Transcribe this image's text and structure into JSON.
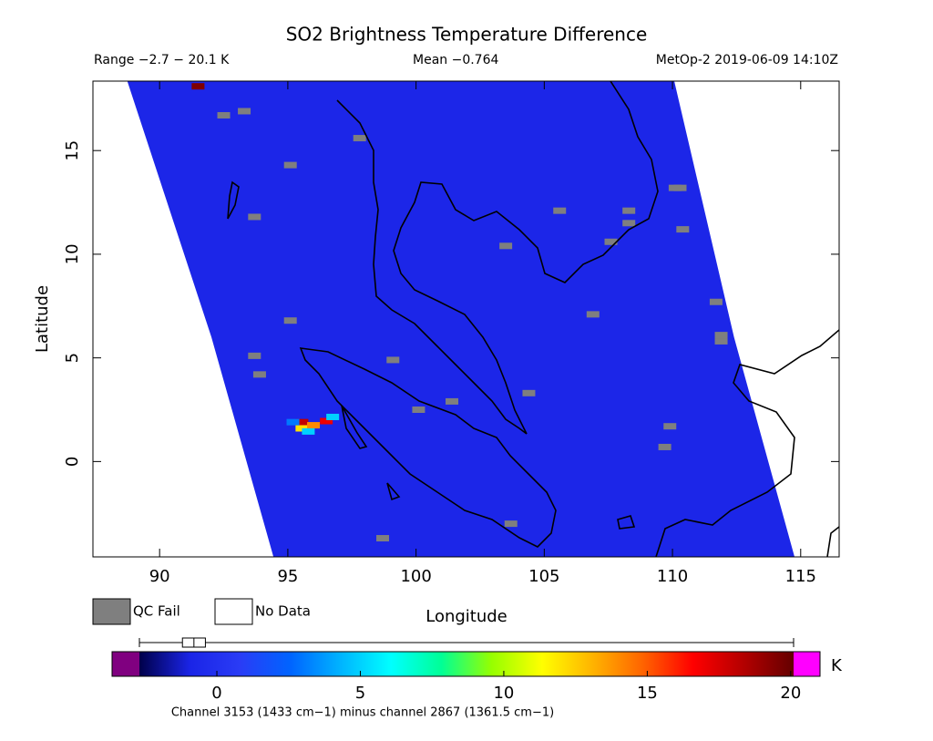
{
  "chart_data": {
    "type": "map",
    "title": "SO2 Brightness Temperature Difference",
    "range_label": "Range −2.7 − 20.1 K",
    "mean_label": "Mean −0.764",
    "source_label": "MetOp-2 2019-06-09 14:10Z",
    "xlabel": "Longitude",
    "ylabel": "Latitude",
    "xlim": [
      87.4,
      116.5
    ],
    "ylim": [
      -4.6,
      18.35
    ],
    "xticks": [
      90,
      95,
      100,
      105,
      110,
      115
    ],
    "yticks": [
      0,
      5,
      10,
      15
    ],
    "mean": -0.764,
    "swath": {
      "west_lon": [
        88.74,
        92.02,
        94.44
      ],
      "west_lat": [
        18.35,
        6.0,
        -4.6
      ],
      "east_lon": [
        114.76,
        112.4,
        110.07
      ],
      "east_lat": [
        -4.6,
        6.0,
        18.35
      ]
    },
    "pixels": {
      "lon": [
        95.55,
        95.55,
        96.0,
        96.5,
        96.75,
        95.2,
        95.8,
        91.5
      ],
      "lat": [
        1.9,
        1.6,
        1.75,
        1.95,
        2.15,
        1.9,
        1.45,
        18.1
      ],
      "values": [
        18,
        12,
        14,
        17,
        5,
        3,
        5,
        19.5
      ]
    },
    "qc_fail": {
      "lon": [
        93.3,
        92.5,
        97.8,
        95.1,
        93.7,
        95.1,
        93.7,
        93.9,
        103.5,
        105.6,
        108.3,
        108.3,
        110.1,
        110.3,
        111.7,
        111.9,
        111.9,
        109.9,
        109.7,
        106.9,
        99.1,
        100.1,
        101.4,
        104.4,
        98.7,
        103.7,
        110.4,
        107.6
      ],
      "lat": [
        16.9,
        16.7,
        15.6,
        14.3,
        11.8,
        6.8,
        5.1,
        4.2,
        10.4,
        12.1,
        12.1,
        11.5,
        13.2,
        13.2,
        7.7,
        5.8,
        6.1,
        1.7,
        0.7,
        7.1,
        4.9,
        2.5,
        2.9,
        3.3,
        -3.7,
        -3.0,
        11.2,
        10.6
      ]
    },
    "legend": [
      {
        "name": "QC Fail",
        "color": "#7f7f7f"
      },
      {
        "name": "No Data",
        "color": "#ffffff"
      }
    ],
    "colorbar": {
      "range": [
        -2.7,
        20.1
      ],
      "ticks": [
        0,
        5,
        10,
        15,
        20
      ],
      "unit": "K",
      "box": [
        -1.2,
        -0.4
      ],
      "median": -0.8,
      "colormap": [
        "#00004a",
        "#1a24e6",
        "#2a3cf6",
        "#0064ff",
        "#00b4ff",
        "#00ffff",
        "#00ff96",
        "#96ff00",
        "#ffff00",
        "#ffb400",
        "#ff6400",
        "#ff0000",
        "#b40000",
        "#640000"
      ],
      "under_color": "#800080",
      "over_color": "#ff00ff",
      "caption": "Channel 3153 (1433 cm−1) minus channel 2867 (1361.5 cm−1)"
    }
  }
}
